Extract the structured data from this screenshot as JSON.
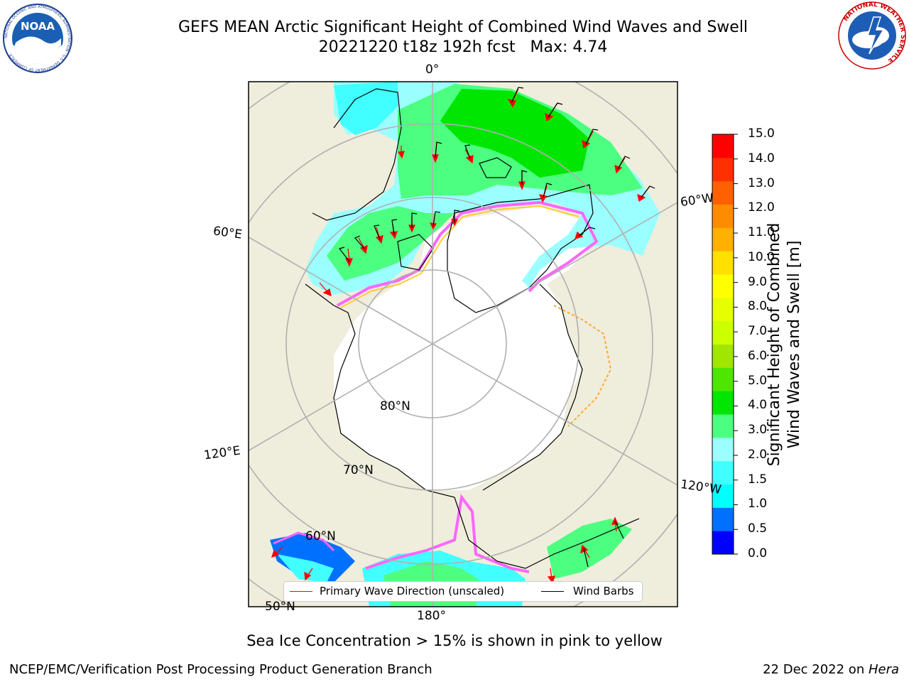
{
  "title": {
    "line1": "GEFS MEAN Arctic Significant Height of Combined Wind Waves and Swell",
    "line2": "20221220 t18z 192h fcst   Max: 4.74"
  },
  "logos": {
    "noaa": "NOAA",
    "noaa_ring": "NATIONAL OCEANIC AND ATMOSPHERIC ADMINISTRATION · U.S. DEPARTMENT OF COMMERCE",
    "nws_ring": "NATIONAL WEATHER SERVICE"
  },
  "map": {
    "lon_labels": {
      "top": "0°",
      "left_upper": "60°E",
      "left_lower": "120°E",
      "bottom": "180°",
      "right_upper": "60°W",
      "right_lower": "120°W"
    },
    "lat_labels": {
      "lat80": "80°N",
      "lat70": "70°N",
      "lat60": "60°N",
      "lat50": "50°N"
    },
    "colors": {
      "land": "#efeddc",
      "ice_free": "#ffffff",
      "grid": "#b0b0b0",
      "arrow": "#ff0000"
    }
  },
  "legend": {
    "primary_wave_direction": "Primary Wave Direction (unscaled)",
    "wind_barbs": "Wind Barbs"
  },
  "colorbar": {
    "title_line1": "Significant Height of Combined",
    "title_line2": "Wind Waves and Swell [m]",
    "ticks": [
      "0.0",
      "0.5",
      "1.0",
      "1.5",
      "2.0",
      "3.0",
      "4.0",
      "5.0",
      "6.0",
      "7.0",
      "8.0",
      "9.0",
      "10.0",
      "11.0",
      "12.0",
      "13.0",
      "14.0",
      "15.0"
    ],
    "colors": [
      "#0000ff",
      "#0070ff",
      "#00ffff",
      "#42ffff",
      "#9cffff",
      "#4dff80",
      "#00e600",
      "#4ee600",
      "#a0e600",
      "#ccff00",
      "#e6ff00",
      "#ffff00",
      "#ffe000",
      "#ffb000",
      "#ff8c00",
      "#ff6000",
      "#ff3000",
      "#ff0000"
    ]
  },
  "chart_data": {
    "type": "map",
    "projection": "north polar stereographic",
    "variable": "Significant Height of Combined Wind Waves and Swell [m]",
    "max": 4.74,
    "color_levels": [
      0.0,
      0.5,
      1.0,
      1.5,
      2.0,
      3.0,
      4.0,
      5.0,
      6.0,
      7.0,
      8.0,
      9.0,
      10.0,
      11.0,
      12.0,
      13.0,
      14.0,
      15.0
    ]
  },
  "captions": {
    "ice": "Sea Ice Concentration > 15% is shown in pink to yellow",
    "footer_left": "NCEP/EMC/Verification Post Processing Product Generation Branch",
    "footer_date": "22 Dec 2022 on ",
    "footer_machine": "Hera"
  }
}
